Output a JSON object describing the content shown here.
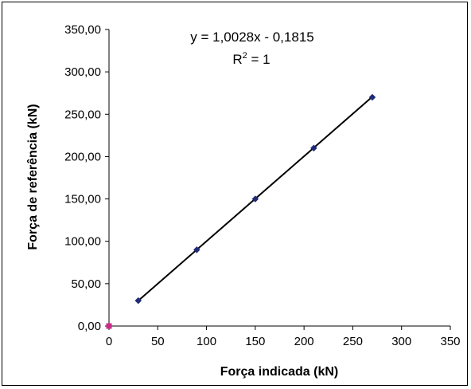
{
  "chart_data": {
    "type": "scatter",
    "xlabel": "Força indicada (kN)",
    "ylabel": "Força de referência (kN)",
    "xlim": [
      0,
      350
    ],
    "ylim": [
      0,
      350
    ],
    "x_ticks": [
      "0",
      "50",
      "100",
      "150",
      "200",
      "250",
      "300",
      "350"
    ],
    "y_ticks": [
      "0,00",
      "50,00",
      "100,00",
      "150,00",
      "200,00",
      "250,00",
      "300,00",
      "350,00"
    ],
    "series": [
      {
        "marker": "diamond",
        "color": "#1f2a78",
        "x": [
          30,
          90,
          150,
          210,
          270
        ],
        "y": [
          30,
          90,
          150,
          210,
          270
        ]
      },
      {
        "marker": "square",
        "color": "#cc2b8a",
        "x": [
          0
        ],
        "y": [
          0
        ]
      }
    ],
    "trendline": {
      "slope": 1.0028,
      "intercept": -0.1815,
      "x_range": [
        30,
        270
      ],
      "color": "#000000",
      "equation": "y = 1,0028x - 0,1815",
      "r2_base": "R",
      "r2_sup": "2",
      "r2_rest": " = 1"
    },
    "grid": false,
    "legend": "none"
  }
}
